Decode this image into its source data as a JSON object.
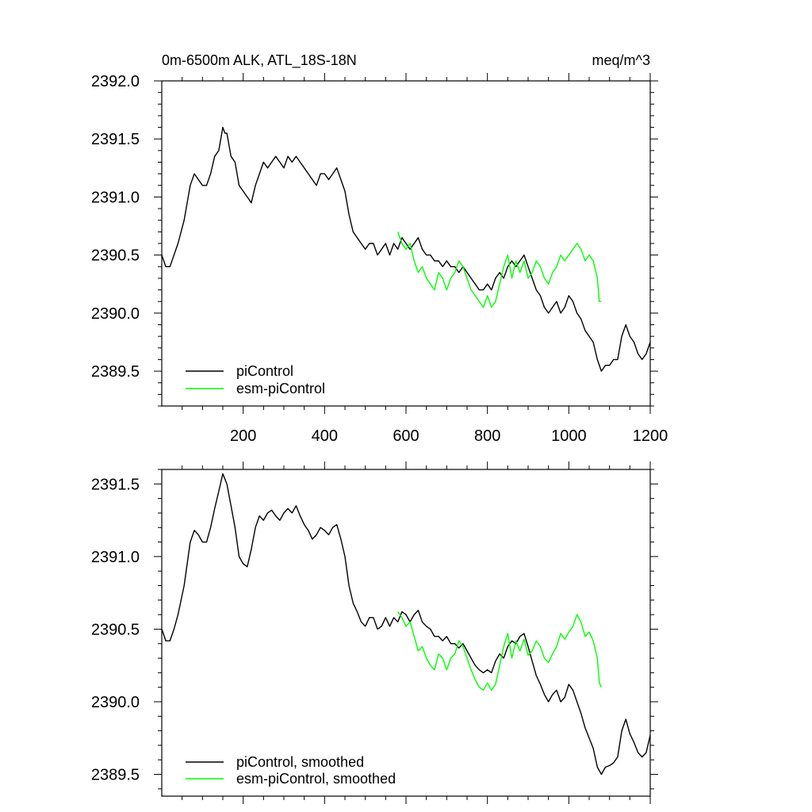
{
  "colors": {
    "picontrol": "#000000",
    "esm_picontrol": "#00ff00"
  },
  "chart_data": [
    {
      "type": "line",
      "title": "0m-6500m ALK, ATL_18S-18N",
      "units_label": "meq/m^3",
      "xlim": [
        0,
        1200
      ],
      "ylim": [
        2389.2,
        2392.0
      ],
      "xticks": [
        200,
        400,
        600,
        800,
        1000,
        1200
      ],
      "xtick_labels": [
        "200",
        "400",
        "600",
        "800",
        "1000",
        "1200"
      ],
      "yticks": [
        2389.5,
        2390.0,
        2390.5,
        2391.0,
        2391.5,
        2392.0
      ],
      "ytick_labels": [
        "2389.5",
        "2390.0",
        "2390.5",
        "2391.0",
        "2391.5",
        "2392.0"
      ],
      "legend_position": "bottom-left",
      "series": [
        {
          "name": "piControl",
          "x": [
            0,
            10,
            20,
            30,
            40,
            55,
            70,
            80,
            90,
            100,
            110,
            120,
            130,
            140,
            150,
            155,
            160,
            170,
            180,
            190,
            200,
            210,
            220,
            230,
            240,
            250,
            260,
            270,
            280,
            290,
            300,
            310,
            320,
            330,
            340,
            350,
            360,
            370,
            380,
            390,
            400,
            410,
            420,
            430,
            440,
            450,
            460,
            470,
            480,
            490,
            500,
            510,
            520,
            530,
            540,
            550,
            560,
            570,
            580,
            590,
            600,
            610,
            620,
            630,
            640,
            650,
            660,
            670,
            680,
            690,
            700,
            710,
            720,
            730,
            740,
            750,
            760,
            770,
            780,
            790,
            800,
            810,
            820,
            830,
            840,
            850,
            860,
            870,
            880,
            890,
            900,
            910,
            920,
            930,
            940,
            950,
            960,
            970,
            980,
            990,
            1000,
            1010,
            1020,
            1030,
            1040,
            1050,
            1060,
            1070,
            1080,
            1090,
            1100,
            1110,
            1120,
            1130,
            1140,
            1150,
            1160,
            1170,
            1180,
            1190,
            1200
          ],
          "values": [
            2390.5,
            2390.4,
            2390.4,
            2390.5,
            2390.6,
            2390.8,
            2391.1,
            2391.2,
            2391.15,
            2391.1,
            2391.1,
            2391.2,
            2391.35,
            2391.4,
            2391.6,
            2391.55,
            2391.55,
            2391.35,
            2391.3,
            2391.1,
            2391.05,
            2391.0,
            2390.95,
            2391.1,
            2391.2,
            2391.3,
            2391.25,
            2391.3,
            2391.35,
            2391.3,
            2391.25,
            2391.35,
            2391.3,
            2391.35,
            2391.3,
            2391.25,
            2391.2,
            2391.15,
            2391.1,
            2391.2,
            2391.2,
            2391.15,
            2391.2,
            2391.25,
            2391.15,
            2391.05,
            2390.85,
            2390.7,
            2390.65,
            2390.6,
            2390.55,
            2390.6,
            2390.6,
            2390.5,
            2390.55,
            2390.6,
            2390.5,
            2390.6,
            2390.55,
            2390.65,
            2390.6,
            2390.55,
            2390.6,
            2390.65,
            2390.55,
            2390.5,
            2390.5,
            2390.45,
            2390.45,
            2390.4,
            2390.45,
            2390.4,
            2390.4,
            2390.35,
            2390.4,
            2390.35,
            2390.3,
            2390.25,
            2390.2,
            2390.2,
            2390.25,
            2390.2,
            2390.3,
            2390.35,
            2390.3,
            2390.4,
            2390.45,
            2390.4,
            2390.45,
            2390.5,
            2390.4,
            2390.3,
            2390.2,
            2390.15,
            2390.05,
            2390.0,
            2390.05,
            2390.1,
            2390.0,
            2390.05,
            2390.15,
            2390.1,
            2390.0,
            2389.95,
            2389.85,
            2389.8,
            2389.75,
            2389.6,
            2389.5,
            2389.55,
            2389.55,
            2389.6,
            2389.6,
            2389.8,
            2389.9,
            2389.8,
            2389.75,
            2389.65,
            2389.6,
            2389.65,
            2389.75
          ]
        },
        {
          "name": "esm-piControl",
          "x": [
            580,
            590,
            600,
            610,
            620,
            630,
            640,
            650,
            660,
            670,
            680,
            690,
            700,
            710,
            720,
            730,
            740,
            750,
            760,
            770,
            780,
            790,
            800,
            810,
            820,
            830,
            840,
            850,
            860,
            870,
            880,
            890,
            900,
            910,
            920,
            930,
            940,
            950,
            960,
            970,
            980,
            990,
            1000,
            1010,
            1020,
            1030,
            1040,
            1050,
            1060,
            1070,
            1075,
            1080
          ],
          "values": [
            2390.7,
            2390.6,
            2390.55,
            2390.6,
            2390.45,
            2390.35,
            2390.4,
            2390.3,
            2390.25,
            2390.2,
            2390.35,
            2390.3,
            2390.2,
            2390.3,
            2390.35,
            2390.45,
            2390.4,
            2390.3,
            2390.2,
            2390.15,
            2390.1,
            2390.05,
            2390.15,
            2390.05,
            2390.1,
            2390.25,
            2390.4,
            2390.5,
            2390.3,
            2390.45,
            2390.35,
            2390.45,
            2390.3,
            2390.35,
            2390.45,
            2390.4,
            2390.3,
            2390.25,
            2390.35,
            2390.4,
            2390.5,
            2390.45,
            2390.5,
            2390.55,
            2390.6,
            2390.55,
            2390.45,
            2390.5,
            2390.45,
            2390.3,
            2390.1,
            2390.1
          ]
        }
      ]
    },
    {
      "type": "line",
      "xlim": [
        0,
        1200
      ],
      "ylim": [
        2389.35,
        2391.6
      ],
      "xticks": [
        200,
        400,
        600,
        800,
        1000,
        1200
      ],
      "xtick_labels": [],
      "yticks": [
        2389.5,
        2390.0,
        2390.5,
        2391.0,
        2391.5
      ],
      "ytick_labels": [
        "2389.5",
        "2390.0",
        "2390.5",
        "2391.0",
        "2391.5"
      ],
      "legend_position": "bottom-left",
      "series": [
        {
          "name": "piControl, smoothed",
          "x": [
            0,
            10,
            20,
            30,
            40,
            55,
            70,
            80,
            90,
            100,
            110,
            120,
            130,
            140,
            150,
            160,
            170,
            180,
            190,
            200,
            210,
            220,
            230,
            240,
            250,
            260,
            270,
            280,
            290,
            300,
            310,
            320,
            330,
            340,
            350,
            360,
            370,
            380,
            390,
            400,
            410,
            420,
            430,
            440,
            450,
            460,
            470,
            480,
            490,
            500,
            510,
            520,
            530,
            540,
            550,
            560,
            570,
            580,
            590,
            600,
            610,
            620,
            630,
            640,
            650,
            660,
            670,
            680,
            690,
            700,
            710,
            720,
            730,
            740,
            750,
            760,
            770,
            780,
            790,
            800,
            810,
            820,
            830,
            840,
            850,
            860,
            870,
            880,
            890,
            900,
            910,
            920,
            930,
            940,
            950,
            960,
            970,
            980,
            990,
            1000,
            1010,
            1020,
            1030,
            1040,
            1050,
            1060,
            1070,
            1080,
            1090,
            1100,
            1110,
            1120,
            1130,
            1140,
            1150,
            1160,
            1170,
            1180,
            1190,
            1200
          ],
          "values": [
            2390.5,
            2390.42,
            2390.42,
            2390.5,
            2390.6,
            2390.8,
            2391.1,
            2391.18,
            2391.15,
            2391.1,
            2391.1,
            2391.2,
            2391.33,
            2391.45,
            2391.57,
            2391.5,
            2391.35,
            2391.2,
            2391.0,
            2390.95,
            2390.93,
            2391.05,
            2391.2,
            2391.28,
            2391.25,
            2391.3,
            2391.32,
            2391.28,
            2391.25,
            2391.3,
            2391.33,
            2391.3,
            2391.35,
            2391.28,
            2391.22,
            2391.18,
            2391.12,
            2391.15,
            2391.2,
            2391.18,
            2391.15,
            2391.2,
            2391.22,
            2391.12,
            2391.0,
            2390.8,
            2390.68,
            2390.62,
            2390.55,
            2390.52,
            2390.58,
            2390.58,
            2390.5,
            2390.52,
            2390.58,
            2390.52,
            2390.58,
            2390.55,
            2390.62,
            2390.6,
            2390.55,
            2390.6,
            2390.63,
            2390.55,
            2390.52,
            2390.5,
            2390.45,
            2390.45,
            2390.42,
            2390.45,
            2390.4,
            2390.4,
            2390.37,
            2390.4,
            2390.35,
            2390.3,
            2390.25,
            2390.22,
            2390.2,
            2390.22,
            2390.2,
            2390.28,
            2390.33,
            2390.3,
            2390.38,
            2390.42,
            2390.4,
            2390.45,
            2390.47,
            2390.38,
            2390.28,
            2390.18,
            2390.12,
            2390.05,
            2390.0,
            2390.05,
            2390.08,
            2390.0,
            2390.03,
            2390.12,
            2390.08,
            2390.0,
            2389.92,
            2389.82,
            2389.75,
            2389.68,
            2389.55,
            2389.5,
            2389.55,
            2389.56,
            2389.58,
            2389.62,
            2389.8,
            2389.88,
            2389.78,
            2389.72,
            2389.65,
            2389.62,
            2389.65,
            2389.77
          ]
        },
        {
          "name": "esm-piControl, smoothed",
          "x": [
            580,
            590,
            600,
            610,
            620,
            630,
            640,
            650,
            660,
            670,
            680,
            690,
            700,
            710,
            720,
            730,
            740,
            750,
            760,
            770,
            780,
            790,
            800,
            810,
            820,
            830,
            840,
            850,
            860,
            870,
            880,
            890,
            900,
            910,
            920,
            930,
            940,
            950,
            960,
            970,
            980,
            990,
            1000,
            1010,
            1020,
            1030,
            1040,
            1050,
            1060,
            1070,
            1075,
            1080
          ],
          "values": [
            2390.62,
            2390.58,
            2390.52,
            2390.55,
            2390.45,
            2390.35,
            2390.38,
            2390.3,
            2390.25,
            2390.22,
            2390.33,
            2390.3,
            2390.22,
            2390.3,
            2390.33,
            2390.42,
            2390.38,
            2390.3,
            2390.22,
            2390.15,
            2390.1,
            2390.08,
            2390.13,
            2390.08,
            2390.12,
            2390.25,
            2390.38,
            2390.47,
            2390.3,
            2390.42,
            2390.35,
            2390.43,
            2390.32,
            2390.35,
            2390.42,
            2390.38,
            2390.3,
            2390.27,
            2390.33,
            2390.38,
            2390.47,
            2390.43,
            2390.48,
            2390.52,
            2390.6,
            2390.55,
            2390.45,
            2390.48,
            2390.42,
            2390.3,
            2390.13,
            2390.1
          ]
        }
      ]
    }
  ]
}
